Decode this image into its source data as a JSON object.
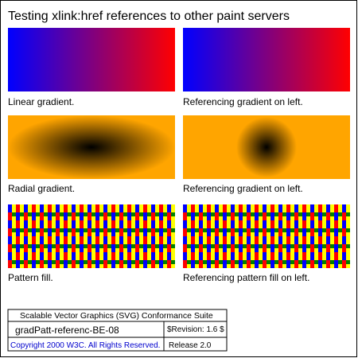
{
  "title": "Testing xlink:href references to other paint servers",
  "colors": {
    "linear_start": "#0000ff",
    "linear_end": "#ff0000",
    "radial_center": "#000000",
    "radial_edge": "#ffa500",
    "pattern_blue": "#0000ff",
    "pattern_red": "#ff0000",
    "pattern_yellow": "#ffff00",
    "pattern_green": "#008000"
  },
  "panels": {
    "linear": {
      "caption": "Linear gradient."
    },
    "linear_ref": {
      "caption": "Referencing gradient on left."
    },
    "radial": {
      "caption": "Radial gradient."
    },
    "radial_ref": {
      "caption": "Referencing gradient on left."
    },
    "pattern": {
      "caption": "Pattern fill."
    },
    "pattern_ref": {
      "caption": "Referencing pattern fill on left."
    }
  },
  "footer": {
    "suite": "Scalable Vector Graphics (SVG) Conformance Suite",
    "test_name": "gradPatt-referenc-BE-08",
    "revision": "$Revision: 1.6 $",
    "copyright": "Copyright 2000 W3C. All Rights Reserved.",
    "release": "Release 2.0"
  }
}
